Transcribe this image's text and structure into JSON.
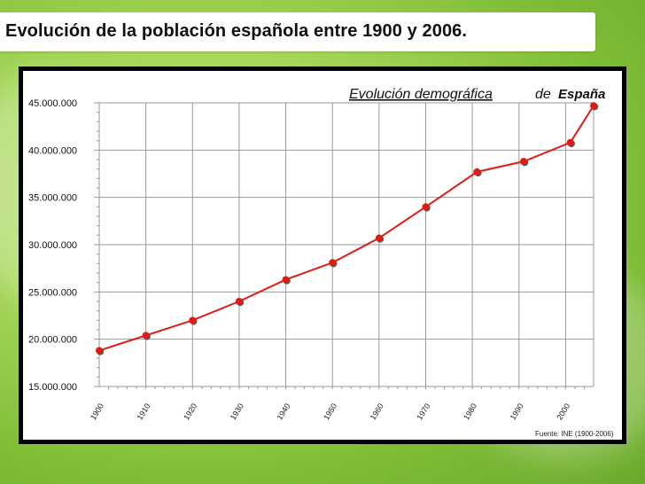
{
  "slide": {
    "title": "Evolución de la población española entre 1900 y 2006."
  },
  "chart_data": {
    "type": "line",
    "title_parts": {
      "underlined": "Evolución demográfica",
      "connector": "de",
      "country": "España"
    },
    "source": "Fuente: INE (1900-2006)",
    "x": [
      1900,
      1910,
      1920,
      1930,
      1940,
      1950,
      1960,
      1970,
      1981,
      1991,
      2001,
      2006
    ],
    "y": [
      18800000,
      20400000,
      22000000,
      24000000,
      26300000,
      28100000,
      30700000,
      34000000,
      37700000,
      38800000,
      40800000,
      44700000
    ],
    "x_ticks": [
      "1900",
      "1910",
      "1920",
      "1930",
      "1940",
      "1950",
      "1960",
      "1970",
      "1980",
      "1990",
      "2000"
    ],
    "x_tick_values": [
      1900,
      1910,
      1920,
      1930,
      1940,
      1950,
      1960,
      1970,
      1980,
      1990,
      2000
    ],
    "y_ticks": [
      "15.000.000",
      "20.000.000",
      "25.000.000",
      "30.000.000",
      "35.000.000",
      "40.000.000",
      "45.000.000"
    ],
    "y_tick_values": [
      15000000,
      20000000,
      25000000,
      30000000,
      35000000,
      40000000,
      45000000
    ],
    "xlim": [
      1900,
      2006
    ],
    "ylim": [
      15000000,
      45000000
    ],
    "grid": true,
    "line_color": "#e01b14",
    "marker_color": "#e01b14"
  }
}
